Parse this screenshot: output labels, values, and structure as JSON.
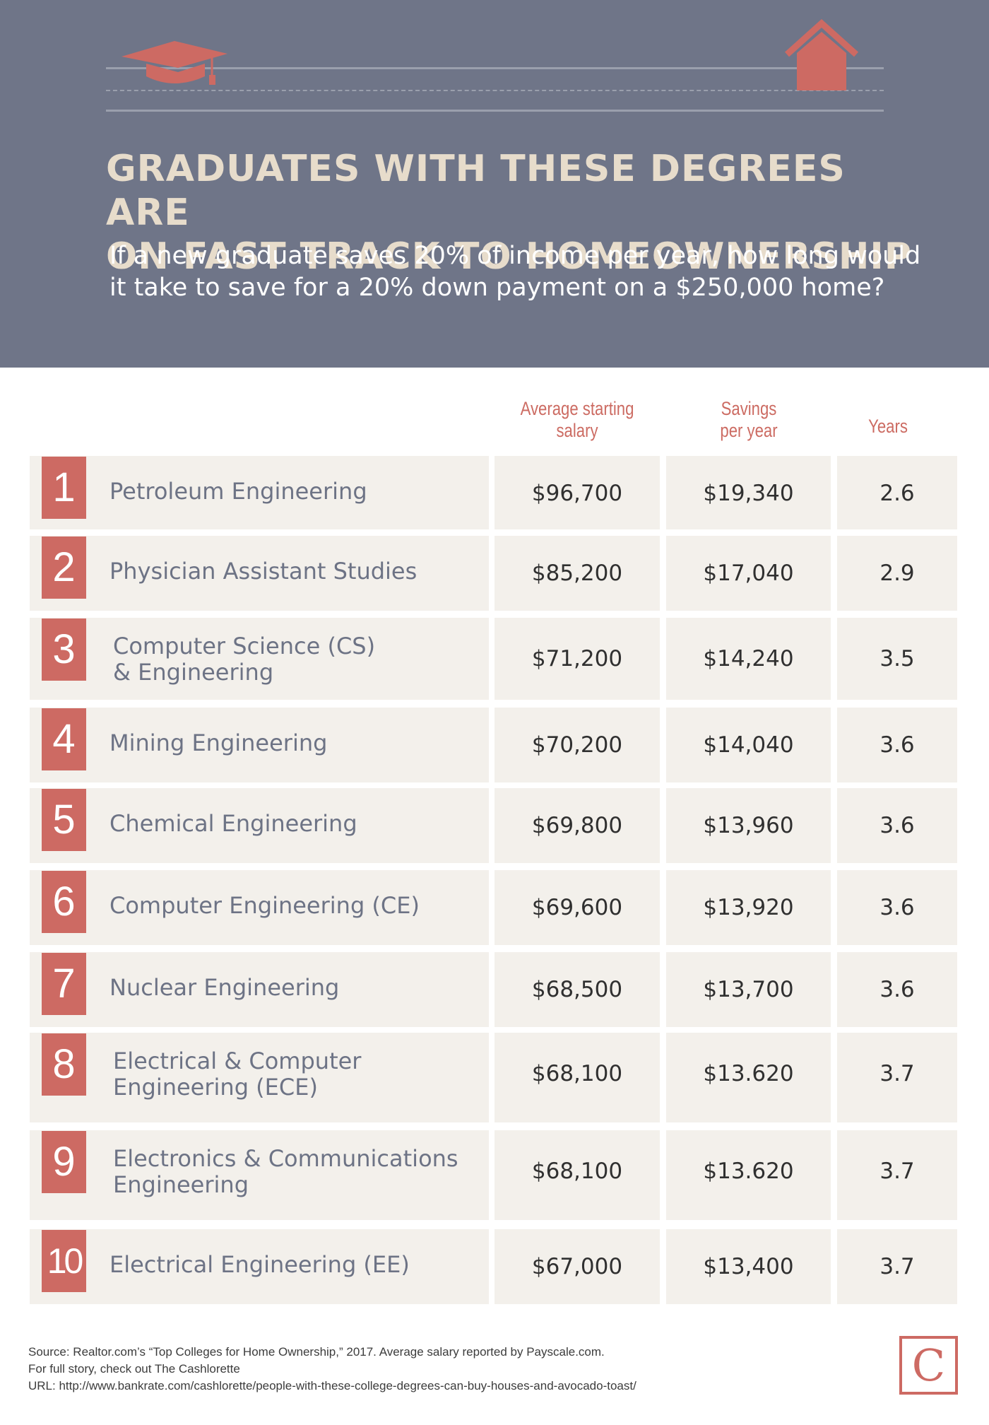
{
  "header": {
    "title_line1": "GRADUATES WITH THESE DEGREES ARE",
    "title_line2": "ON FAST TRACK TO HOMEOWNERSHIP",
    "subtitle_line1": "If a new graduate saves 20% of income per year, how long would",
    "subtitle_line2": "it take to save for a 20% down payment on a $250,000 home?",
    "icons": [
      "graduation-cap-icon",
      "house-icon"
    ]
  },
  "columns": {
    "salary_line1": "Average starting",
    "salary_line2": "salary",
    "savings_line1": "Savings",
    "savings_line2": "per year",
    "years": "Years"
  },
  "rows": [
    {
      "rank": "1",
      "degree": "Petroleum Engineering",
      "salary": "$96,700",
      "savings": "$19,340",
      "years": "2.6"
    },
    {
      "rank": "2",
      "degree": "Physician Assistant Studies",
      "salary": "$85,200",
      "savings": "$17,040",
      "years": "2.9"
    },
    {
      "rank": "3",
      "degree": "Computer Science (CS)\n& Engineering",
      "salary": "$71,200",
      "savings": "$14,240",
      "years": "3.5"
    },
    {
      "rank": "4",
      "degree": "Mining Engineering",
      "salary": "$70,200",
      "savings": "$14,040",
      "years": "3.6"
    },
    {
      "rank": "5",
      "degree": "Chemical Engineering",
      "salary": "$69,800",
      "savings": "$13,960",
      "years": "3.6"
    },
    {
      "rank": "6",
      "degree": "Computer Engineering (CE)",
      "salary": "$69,600",
      "savings": "$13,920",
      "years": "3.6"
    },
    {
      "rank": "7",
      "degree": "Nuclear Engineering",
      "salary": "$68,500",
      "savings": "$13,700",
      "years": "3.6"
    },
    {
      "rank": "8",
      "degree": "Electrical & Computer\nEngineering (ECE)",
      "salary": "$68,100",
      "savings": "$13.620",
      "years": "3.7"
    },
    {
      "rank": "9",
      "degree": "Electronics & Communications\nEngineering",
      "salary": "$68,100",
      "savings": "$13.620",
      "years": "3.7"
    },
    {
      "rank": "10",
      "degree": "Electrical Engineering (EE)",
      "salary": "$67,000",
      "savings": "$13,400",
      "years": "3.7"
    }
  ],
  "chart_data": {
    "type": "table",
    "columns": [
      "Average starting salary",
      "Savings per year",
      "Years"
    ],
    "categories": [
      "Petroleum Engineering",
      "Physician Assistant Studies",
      "Computer Science (CS) & Engineering",
      "Mining Engineering",
      "Chemical Engineering",
      "Computer Engineering (CE)",
      "Nuclear Engineering",
      "Electrical & Computer Engineering (ECE)",
      "Electronics & Communications Engineering",
      "Electrical Engineering (EE)"
    ],
    "series": [
      {
        "name": "Average starting salary",
        "values": [
          96700,
          85200,
          71200,
          70200,
          69800,
          69600,
          68500,
          68100,
          68100,
          67000
        ]
      },
      {
        "name": "Savings per year",
        "values": [
          19340,
          17040,
          14240,
          14040,
          13960,
          13920,
          13700,
          13620,
          13620,
          13400
        ]
      },
      {
        "name": "Years",
        "values": [
          2.6,
          2.9,
          3.5,
          3.6,
          3.6,
          3.6,
          3.6,
          3.7,
          3.7,
          3.7
        ]
      }
    ]
  },
  "footer": {
    "source": "Source: Realtor.com’s “Top Colleges for Home Ownership,” 2017. Average salary reported by Payscale.com.",
    "story": "For full story, check out The Cashlorette",
    "url": "URL: http://www.bankrate.com/cashlorette/people-with-these-college-degrees-can-buy-houses-and-avocado-toast/",
    "logo_letter": "C"
  },
  "colors": {
    "header_bg": "#6f7588",
    "accent": "#cd6a63",
    "cell_bg": "#f3f0eb",
    "title": "#e7dccb"
  }
}
